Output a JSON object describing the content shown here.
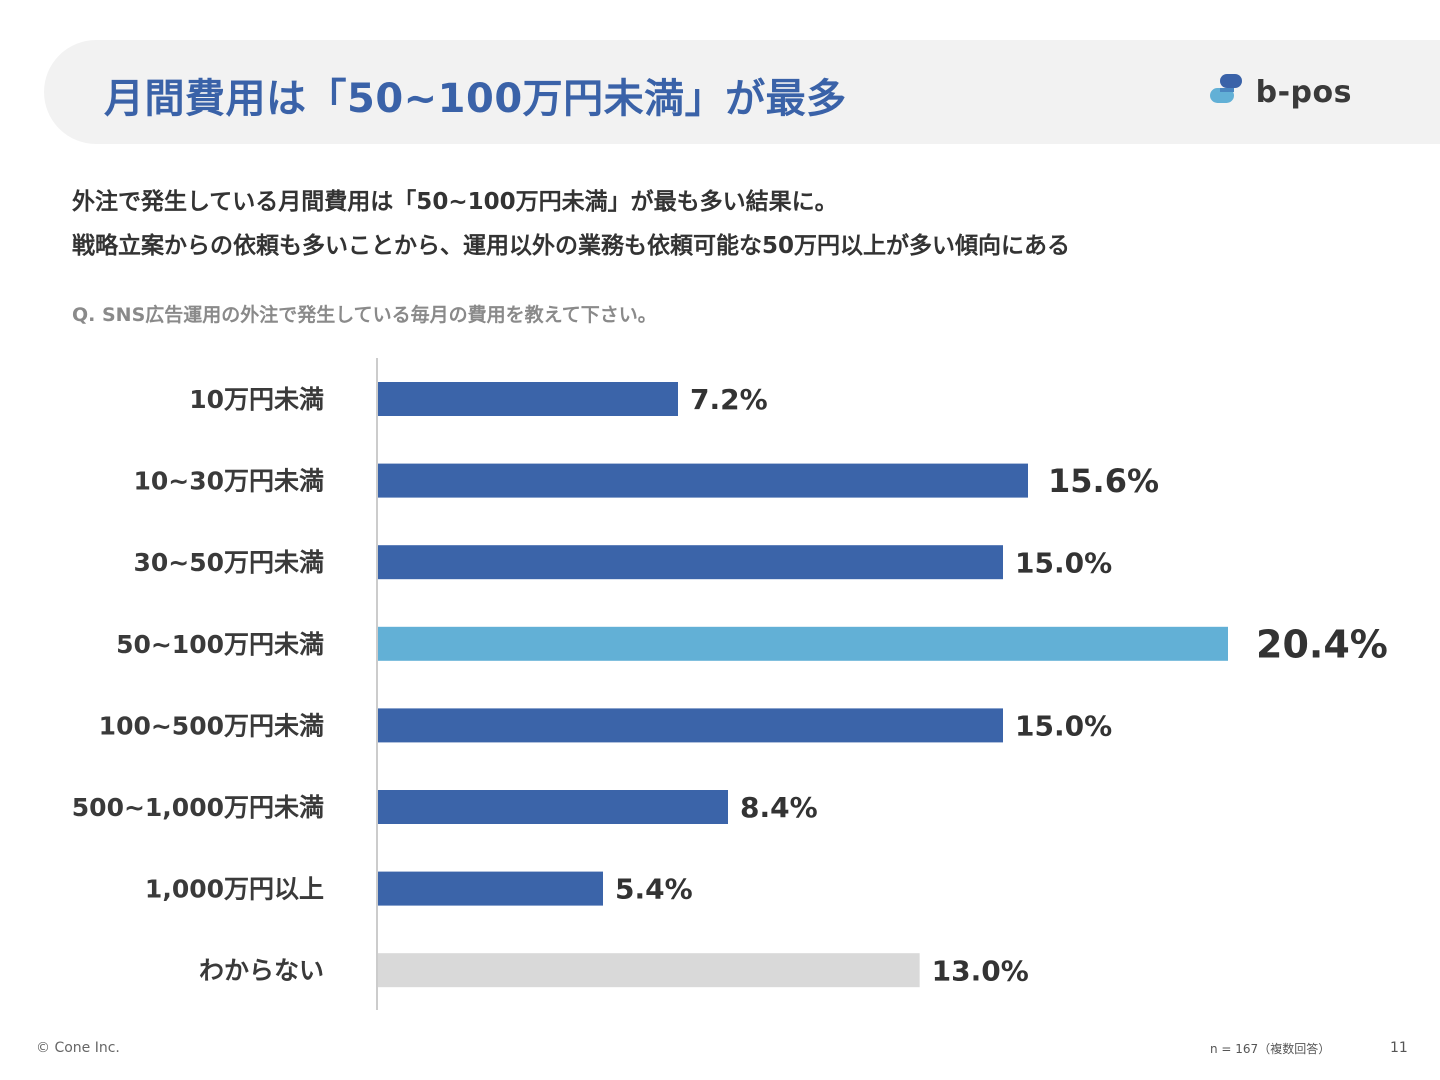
{
  "header": {
    "title": "月間費用は「50~100万円未満」が最多",
    "logo_text": "b-pos"
  },
  "subtitle": {
    "line1": "外注で発生している月間費用は「50~100万円未満」が最も多い結果に。",
    "line2": "戦略立案からの依頼も多いことから、運用以外の業務も依頼可能な50万円以上が多い傾向にある"
  },
  "question": "Q. SNS広告運用の外注で発生している毎月の費用を教えて下さい。",
  "colors": {
    "title": "#3a62a8",
    "bar_default": "#3b64a9",
    "bar_highlight": "#62b0d6",
    "bar_unknown": "#d9d9d9",
    "axis": "#cccccc",
    "logo_dark": "#3a62a8",
    "logo_light": "#62b0d6"
  },
  "chart_data": {
    "type": "bar",
    "orientation": "horizontal",
    "categories": [
      "10万円未満",
      "10~30万円未満",
      "30~50万円未満",
      "50~100万円未満",
      "100~500万円未満",
      "500~1,000万円未満",
      "1,000万円以上",
      "わからない"
    ],
    "values": [
      7.2,
      15.6,
      15.0,
      20.4,
      15.0,
      8.4,
      5.4,
      13.0
    ],
    "labels": [
      "7.2%",
      "15.6%",
      "15.0%",
      "20.4%",
      "15.0%",
      "8.4%",
      "5.4%",
      "13.0%"
    ],
    "highlight_index": 3,
    "unknown_index": 7,
    "xlim": [
      0,
      20.4
    ],
    "title": "",
    "xlabel": "",
    "ylabel": ""
  },
  "footer": {
    "copyright": "© Cone Inc.",
    "sample": "n = 167（複数回答）",
    "page": "11"
  }
}
